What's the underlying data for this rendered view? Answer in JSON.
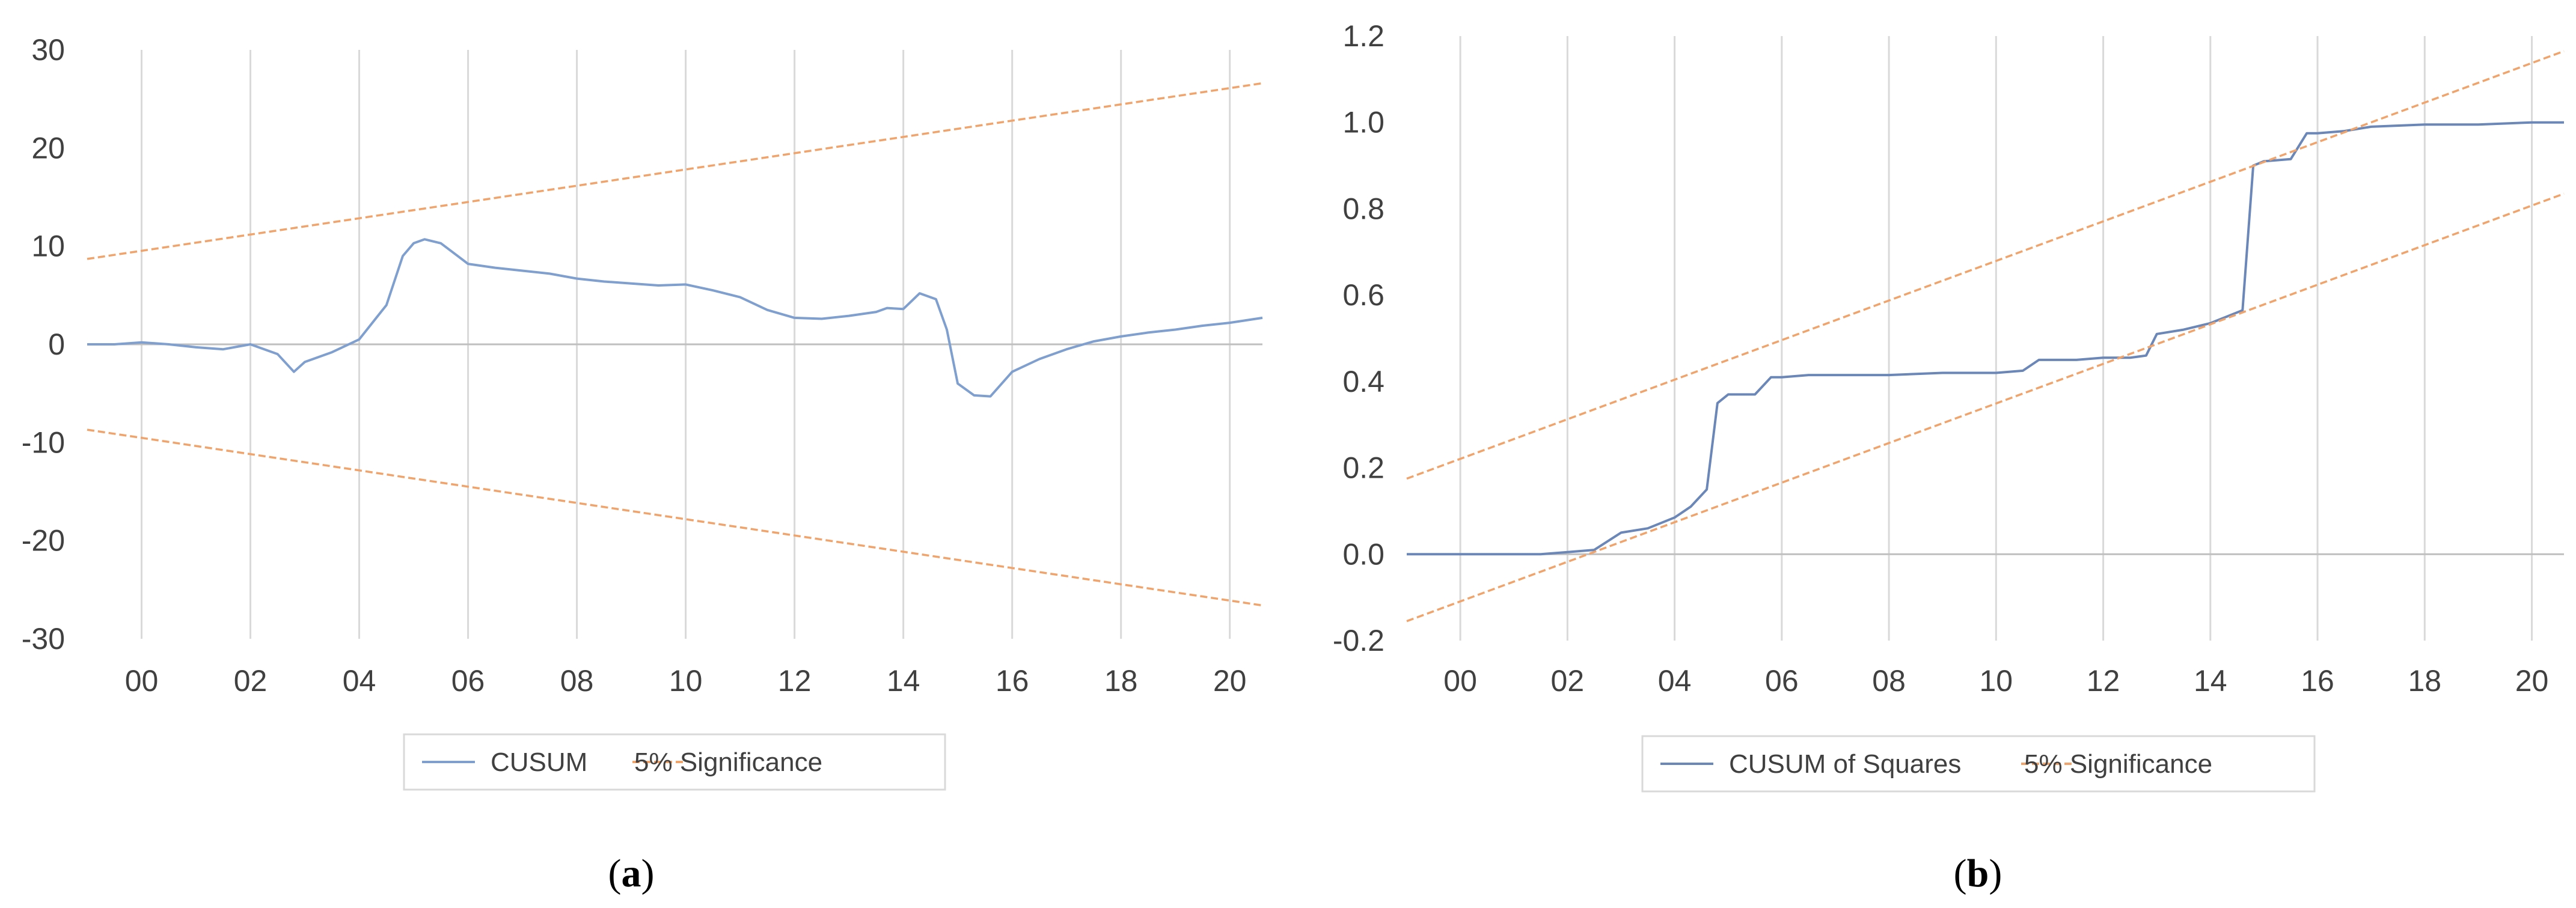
{
  "chart_data": [
    {
      "type": "line",
      "caption_letter": "a",
      "xlim": [
        1999,
        2020.6
      ],
      "ylim": [
        -30,
        30
      ],
      "y_ticks": [
        30,
        20,
        10,
        0,
        -10,
        -20,
        -30
      ],
      "x_ticks": [
        2000,
        2002,
        2004,
        2006,
        2008,
        2010,
        2012,
        2014,
        2016,
        2018,
        2020
      ],
      "x_tick_labels": [
        "00",
        "02",
        "04",
        "06",
        "08",
        "10",
        "12",
        "14",
        "16",
        "18",
        "20"
      ],
      "grid": "vertical",
      "legend_position": "bottom",
      "series": [
        {
          "name": "CUSUM",
          "color": "#7f9fcf",
          "style": "solid",
          "x": [
            1999.0,
            1999.5,
            2000.0,
            2000.5,
            2001.0,
            2001.5,
            2002.0,
            2002.5,
            2002.8,
            2003.0,
            2003.5,
            2004.0,
            2004.5,
            2004.8,
            2005.0,
            2005.2,
            2005.5,
            2006.0,
            2006.5,
            2007.0,
            2007.5,
            2008.0,
            2008.5,
            2009.0,
            2009.5,
            2010.0,
            2010.5,
            2011.0,
            2011.5,
            2012.0,
            2012.5,
            2013.0,
            2013.5,
            2013.7,
            2014.0,
            2014.3,
            2014.6,
            2014.8,
            2015.0,
            2015.3,
            2015.6,
            2016.0,
            2016.5,
            2017.0,
            2017.5,
            2018.0,
            2018.5,
            2019.0,
            2019.5,
            2020.0,
            2020.6
          ],
          "y": [
            0.0,
            0.0,
            0.2,
            0.0,
            -0.3,
            -0.5,
            0.0,
            -1.0,
            -2.8,
            -1.8,
            -0.8,
            0.5,
            4.0,
            9.0,
            10.3,
            10.7,
            10.3,
            8.2,
            7.8,
            7.5,
            7.2,
            6.7,
            6.4,
            6.2,
            6.0,
            6.1,
            5.5,
            4.8,
            3.5,
            2.7,
            2.6,
            2.9,
            3.3,
            3.7,
            3.6,
            5.2,
            4.6,
            1.5,
            -4.0,
            -5.2,
            -5.3,
            -2.8,
            -1.5,
            -0.5,
            0.3,
            0.8,
            1.2,
            1.5,
            1.9,
            2.2,
            2.7
          ]
        },
        {
          "name": "5% Significance",
          "color": "#f0a36a",
          "style": "dashed",
          "x": [
            1999.0,
            2020.6
          ],
          "y": [
            8.7,
            26.6
          ]
        },
        {
          "name": "",
          "color": "#f0a36a",
          "style": "dashed",
          "x": [
            1999.0,
            2020.6
          ],
          "y": [
            -8.7,
            -26.6
          ]
        }
      ]
    },
    {
      "type": "line",
      "caption_letter": "b",
      "xlim": [
        1999,
        2020.6
      ],
      "ylim": [
        -0.2,
        1.2
      ],
      "y_ticks": [
        1.2,
        1.0,
        0.8,
        0.6,
        0.4,
        0.2,
        0.0,
        -0.2
      ],
      "y_tick_labels": [
        "1.2",
        "1.0",
        "0.8",
        "0.6",
        "0.4",
        "0.2",
        "0.0",
        "-0.2"
      ],
      "x_ticks": [
        2000,
        2002,
        2004,
        2006,
        2008,
        2010,
        2012,
        2014,
        2016,
        2018,
        2020
      ],
      "x_tick_labels": [
        "00",
        "02",
        "04",
        "06",
        "08",
        "10",
        "12",
        "14",
        "16",
        "18",
        "20"
      ],
      "grid": "vertical",
      "legend_position": "bottom",
      "series": [
        {
          "name": "CUSUM of Squares",
          "color": "#6a87b8",
          "style": "solid",
          "x": [
            1999.0,
            2001.5,
            2002.0,
            2002.5,
            2003.0,
            2003.5,
            2004.0,
            2004.3,
            2004.6,
            2004.8,
            2005.0,
            2005.2,
            2005.5,
            2005.8,
            2006.0,
            2006.5,
            2007.0,
            2007.5,
            2008.0,
            2009.0,
            2010.0,
            2010.5,
            2010.8,
            2011.0,
            2011.5,
            2012.0,
            2012.5,
            2012.8,
            2013.0,
            2013.5,
            2014.0,
            2014.3,
            2014.6,
            2014.8,
            2015.0,
            2015.5,
            2015.8,
            2016.0,
            2016.5,
            2017.0,
            2018.0,
            2019.0,
            2020.0,
            2020.6
          ],
          "y": [
            0.0,
            0.0,
            0.005,
            0.01,
            0.05,
            0.06,
            0.085,
            0.11,
            0.15,
            0.35,
            0.37,
            0.37,
            0.37,
            0.41,
            0.41,
            0.415,
            0.415,
            0.415,
            0.415,
            0.42,
            0.42,
            0.425,
            0.45,
            0.45,
            0.45,
            0.455,
            0.455,
            0.46,
            0.51,
            0.52,
            0.535,
            0.55,
            0.565,
            0.9,
            0.91,
            0.915,
            0.975,
            0.975,
            0.98,
            0.99,
            0.995,
            0.995,
            1.0,
            1.0
          ]
        },
        {
          "name": "5% Significance",
          "color": "#f0a36a",
          "style": "dashed",
          "x": [
            1999.0,
            2020.6
          ],
          "y": [
            0.175,
            1.165
          ]
        },
        {
          "name": "",
          "color": "#f0a36a",
          "style": "dashed",
          "x": [
            1999.0,
            2020.6
          ],
          "y": [
            -0.155,
            0.835
          ]
        }
      ]
    }
  ]
}
